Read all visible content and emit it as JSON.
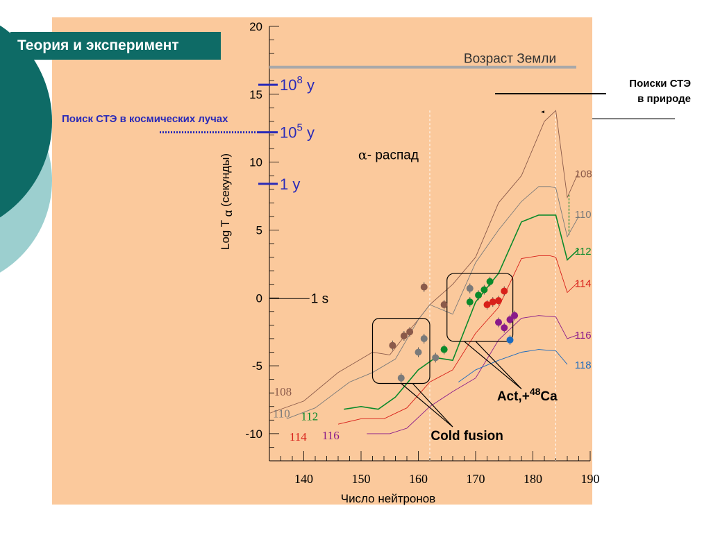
{
  "slide_title": "Теория и эксперимент",
  "note_cosmic": "Поиск СТЭ в космических лучах",
  "note_nature_line1": "Поиски СТЭ",
  "note_nature_line2": "в природе",
  "colors": {
    "panel": "#fbc99c",
    "title_bg": "#0e6b66",
    "deco_dark": "#0e6b66",
    "deco_light": "#9ccfcf",
    "blue": "#2a2ab8",
    "z108": "#8b5a4a",
    "z110": "#7a7a7a",
    "z112": "#0a8a2a",
    "z114": "#d8201a",
    "z116": "#8a1a8a",
    "z118": "#1a6abf"
  },
  "chart_data": {
    "type": "line",
    "xlabel": "Число нейтронов",
    "ylabel": "Log T",
    "ylabel_greek": "α",
    "ylabel_suffix": "(секунды)",
    "xlim": [
      134,
      190
    ],
    "ylim": [
      -12,
      20
    ],
    "x_ticks": [
      140,
      150,
      160,
      170,
      180,
      190
    ],
    "y_ticks": [
      20,
      15,
      10,
      5,
      0,
      -5,
      -10
    ],
    "earth_age_value": 17,
    "earth_age_label": "Возраст Земли",
    "alpha_decay_greek": "α",
    "alpha_decay_label": "- распад",
    "one_s_value": 0,
    "one_s_label": "1 s",
    "time_markers": [
      {
        "value": 15.7,
        "label": "10",
        "exp": "8",
        "unit": "y"
      },
      {
        "value": 12.2,
        "label": "10",
        "exp": "5",
        "unit": "y"
      },
      {
        "value": 8.4,
        "label": "1 y",
        "exp": "",
        "unit": ""
      }
    ],
    "series": [
      {
        "name": "108",
        "color_key": "z108",
        "x": [
          134,
          140,
          146,
          152,
          155,
          158,
          160,
          162,
          166,
          170,
          174,
          178,
          180,
          182,
          184,
          186,
          188
        ],
        "y": [
          -8.5,
          -7.6,
          -5.5,
          -4,
          -4.2,
          -2.6,
          -1.6,
          -0.5,
          1,
          3,
          7,
          9,
          11,
          13,
          13.8,
          7.4,
          9.3
        ]
      },
      {
        "name": "110",
        "color_key": "z110",
        "x": [
          137,
          142,
          148,
          152,
          156,
          160,
          162,
          166,
          170,
          174,
          178,
          181,
          183,
          184,
          186,
          188
        ],
        "y": [
          -8.9,
          -8.1,
          -6.2,
          -5.5,
          -4.5,
          -1.6,
          -0.5,
          -1.2,
          2.6,
          5,
          7.1,
          8.2,
          8.2,
          8.1,
          4.5,
          6
        ]
      },
      {
        "name": "112",
        "color_key": "z112",
        "x": [
          147,
          150,
          153,
          156,
          160,
          163,
          166,
          170,
          174,
          178,
          181,
          183,
          184,
          186,
          188
        ],
        "y": [
          -8.2,
          -8,
          -8.2,
          -7.3,
          -5.3,
          -4.4,
          -4.6,
          -0.3,
          1.8,
          5.6,
          6.1,
          6.1,
          6.1,
          2.8,
          3.6
        ]
      },
      {
        "name": "114",
        "color_key": "z114",
        "x": [
          146,
          150,
          154,
          158,
          162,
          166,
          170,
          174,
          178,
          181,
          183,
          184,
          186,
          188
        ],
        "y": [
          -9.3,
          -8.9,
          -8.9,
          -8.1,
          -6.2,
          -5.3,
          -2.6,
          -0.7,
          2.9,
          3.1,
          3.1,
          3,
          0.4,
          1.2
        ]
      },
      {
        "name": "116",
        "color_key": "z116",
        "x": [
          151,
          155,
          158,
          162,
          166,
          170,
          174,
          178,
          181,
          184,
          186,
          188
        ],
        "y": [
          -10,
          -10,
          -9.6,
          -8,
          -6.9,
          -5.9,
          -3.1,
          -1.5,
          -1.3,
          -1.4,
          -3,
          -2.7
        ]
      },
      {
        "name": "118",
        "color_key": "z118",
        "x": [
          167,
          170,
          174,
          178,
          181,
          184,
          186
        ],
        "y": [
          -6.2,
          -5.3,
          -4.6,
          -4,
          -3.8,
          -3.9,
          -4.9
        ]
      }
    ],
    "series_end_labels": [
      {
        "name": "108",
        "x": 187.3,
        "y": 9.2
      },
      {
        "name": "110",
        "x": 187.3,
        "y": 6.2
      },
      {
        "name": "112",
        "x": 187.3,
        "y": 3.5
      },
      {
        "name": "114",
        "x": 187.3,
        "y": 1.1
      },
      {
        "name": "116",
        "x": 187.3,
        "y": -2.7
      },
      {
        "name": "118",
        "x": 187.3,
        "y": -4.9
      }
    ],
    "series_start_labels": [
      {
        "name": "108",
        "x": 134.8,
        "y": -6.9,
        "color_key": "z108"
      },
      {
        "name": "110",
        "x": 134.6,
        "y": -8.5,
        "color_key": "z110"
      },
      {
        "name": "112",
        "x": 139.5,
        "y": -8.7,
        "color_key": "z112"
      },
      {
        "name": "114",
        "x": 137.5,
        "y": -10.2,
        "color_key": "z114"
      },
      {
        "name": "116",
        "x": 143.2,
        "y": -10.1,
        "color_key": "z116"
      }
    ],
    "points": [
      {
        "x": 155.5,
        "y": -3.5,
        "color_key": "z108"
      },
      {
        "x": 157.5,
        "y": -2.8,
        "color_key": "z108"
      },
      {
        "x": 158.5,
        "y": -2.5,
        "color_key": "z108"
      },
      {
        "x": 161,
        "y": 0.8,
        "color_key": "z108"
      },
      {
        "x": 164.5,
        "y": -0.5,
        "color_key": "z108"
      },
      {
        "x": 157,
        "y": -5.9,
        "color_key": "z110"
      },
      {
        "x": 160,
        "y": -4,
        "color_key": "z110"
      },
      {
        "x": 161,
        "y": -3,
        "color_key": "z110"
      },
      {
        "x": 163,
        "y": -4.4,
        "color_key": "z110"
      },
      {
        "x": 169,
        "y": 0.7,
        "color_key": "z110"
      },
      {
        "x": 164.5,
        "y": -3.8,
        "color_key": "z112"
      },
      {
        "x": 169,
        "y": -0.3,
        "color_key": "z112"
      },
      {
        "x": 170.5,
        "y": 0.2,
        "color_key": "z112"
      },
      {
        "x": 171.5,
        "y": 0.6,
        "color_key": "z112"
      },
      {
        "x": 172.5,
        "y": 1.2,
        "color_key": "z112"
      },
      {
        "x": 172,
        "y": -0.5,
        "color_key": "z114"
      },
      {
        "x": 173,
        "y": -0.3,
        "color_key": "z114"
      },
      {
        "x": 174,
        "y": -0.2,
        "color_key": "z114"
      },
      {
        "x": 175,
        "y": 0.5,
        "color_key": "z114"
      },
      {
        "x": 174,
        "y": -1.8,
        "color_key": "z116"
      },
      {
        "x": 175,
        "y": -2.2,
        "color_key": "z116"
      },
      {
        "x": 176,
        "y": -1.6,
        "color_key": "z116"
      },
      {
        "x": 176.8,
        "y": -1.3,
        "color_key": "z116"
      },
      {
        "x": 176,
        "y": -3.1,
        "color_key": "z118"
      }
    ],
    "boxes": [
      {
        "label": "Cold fusion",
        "x0": 152,
        "x1": 162,
        "y0": -6.3,
        "y1": -1.5,
        "label_x": 168.5,
        "label_y": -10.1
      },
      {
        "label_prefix": "Act,+",
        "label_sup": "48",
        "label_suffix": "Ca",
        "x0": 165,
        "x1": 176.5,
        "y0": -3.2,
        "y1": 1.8,
        "label_x": 179,
        "label_y": -7.2
      }
    ],
    "grid": false
  }
}
